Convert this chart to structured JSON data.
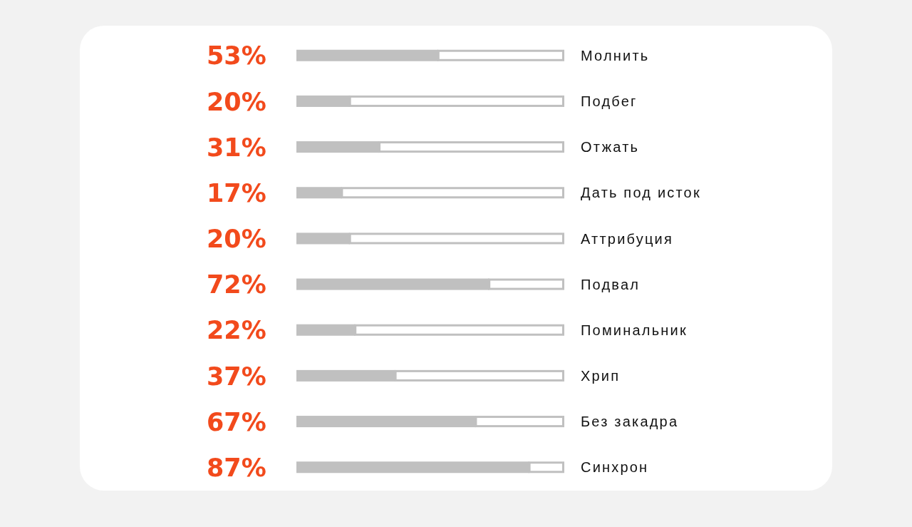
{
  "chart_data": {
    "type": "bar",
    "orientation": "horizontal",
    "stacked": true,
    "categories": [
      "Молнить",
      "Подбег",
      "Отжать",
      "Дать под исток",
      "Аттрибуция",
      "Подвал",
      "Поминальник",
      "Хрип",
      "Без закадра",
      "Синхрон"
    ],
    "series": [
      {
        "color": "#c0c0c0",
        "values": [
          53,
          20,
          31,
          17,
          20,
          72,
          22,
          37,
          67,
          87
        ],
        "value_labels": [
          "53%",
          "20%",
          "31%",
          "17%",
          "20%",
          "72%",
          "22%",
          "37%",
          "67%",
          "87%"
        ]
      },
      {
        "color": "#ffffff",
        "values": [
          47,
          80,
          69,
          83,
          80,
          28,
          78,
          63,
          33,
          13
        ]
      }
    ],
    "xlim": [
      0,
      100
    ]
  }
}
